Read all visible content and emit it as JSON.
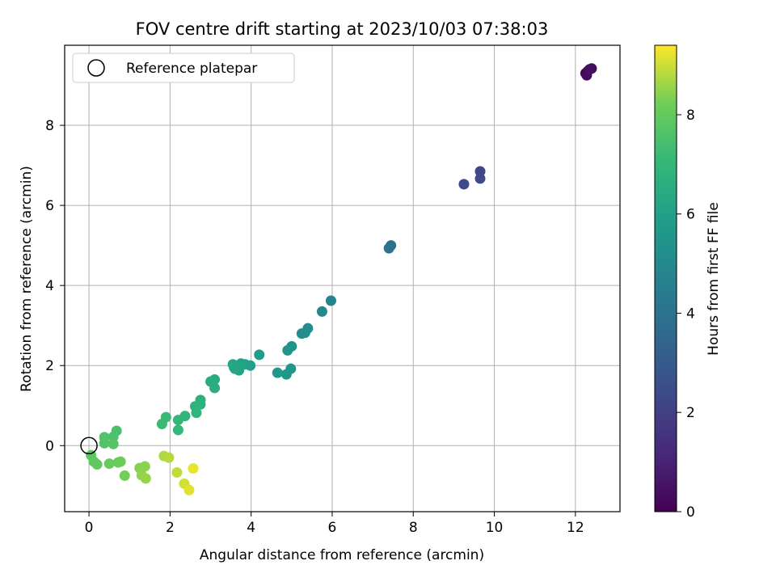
{
  "chart_data": {
    "type": "scatter",
    "title": "FOV centre drift starting at 2023/10/03 07:38:03",
    "xlabel": "Angular distance from reference (arcmin)",
    "ylabel": "Rotation from reference (arcmin)",
    "colorbar_label": "Hours from first FF file",
    "xlim": [
      -0.6,
      13.1
    ],
    "ylim": [
      -1.65,
      10.0
    ],
    "x_ticks": [
      0,
      2,
      4,
      6,
      8,
      10,
      12
    ],
    "y_ticks": [
      0,
      2,
      4,
      6,
      8
    ],
    "colorbar_range": [
      0,
      9.4
    ],
    "colorbar_ticks": [
      0,
      2,
      4,
      6,
      8
    ],
    "colormap": "viridis",
    "grid": true,
    "legend": {
      "location": "top-left",
      "entries": [
        {
          "label": "Reference platepar",
          "marker": "open-circle",
          "color": "#000000"
        }
      ]
    },
    "reference_point": {
      "x": 0,
      "y": 0
    },
    "points": [
      {
        "x": 12.25,
        "y": 9.3,
        "c": 0.05
      },
      {
        "x": 12.3,
        "y": 9.35,
        "c": 0.15
      },
      {
        "x": 12.4,
        "y": 9.42,
        "c": 0.25
      },
      {
        "x": 12.28,
        "y": 9.25,
        "c": 0.35
      },
      {
        "x": 12.35,
        "y": 9.4,
        "c": 0.45
      },
      {
        "x": 9.65,
        "y": 6.85,
        "c": 2.2
      },
      {
        "x": 9.65,
        "y": 6.67,
        "c": 2.35
      },
      {
        "x": 9.25,
        "y": 6.53,
        "c": 2.5
      },
      {
        "x": 7.45,
        "y": 5.0,
        "c": 3.9
      },
      {
        "x": 7.4,
        "y": 4.93,
        "c": 4.0
      },
      {
        "x": 5.97,
        "y": 3.62,
        "c": 4.8
      },
      {
        "x": 5.75,
        "y": 3.35,
        "c": 4.95
      },
      {
        "x": 5.4,
        "y": 2.93,
        "c": 5.1
      },
      {
        "x": 5.25,
        "y": 2.8,
        "c": 5.2
      },
      {
        "x": 5.33,
        "y": 2.82,
        "c": 5.25
      },
      {
        "x": 5.0,
        "y": 2.48,
        "c": 5.4
      },
      {
        "x": 4.9,
        "y": 2.38,
        "c": 5.45
      },
      {
        "x": 4.98,
        "y": 1.92,
        "c": 5.55
      },
      {
        "x": 4.87,
        "y": 1.78,
        "c": 5.6
      },
      {
        "x": 4.65,
        "y": 1.82,
        "c": 5.65
      },
      {
        "x": 4.2,
        "y": 2.27,
        "c": 5.85
      },
      {
        "x": 3.98,
        "y": 2.0,
        "c": 5.95
      },
      {
        "x": 3.85,
        "y": 2.03,
        "c": 6.0
      },
      {
        "x": 3.75,
        "y": 2.05,
        "c": 6.05
      },
      {
        "x": 3.7,
        "y": 1.88,
        "c": 6.1
      },
      {
        "x": 3.6,
        "y": 1.92,
        "c": 6.15
      },
      {
        "x": 3.55,
        "y": 2.03,
        "c": 6.2
      },
      {
        "x": 3.58,
        "y": 1.95,
        "c": 6.25
      },
      {
        "x": 3.1,
        "y": 1.65,
        "c": 6.45
      },
      {
        "x": 3.0,
        "y": 1.6,
        "c": 6.5
      },
      {
        "x": 3.1,
        "y": 1.44,
        "c": 6.55
      },
      {
        "x": 2.75,
        "y": 1.14,
        "c": 6.7
      },
      {
        "x": 2.75,
        "y": 1.03,
        "c": 6.75
      },
      {
        "x": 2.62,
        "y": 0.98,
        "c": 6.8
      },
      {
        "x": 2.65,
        "y": 0.82,
        "c": 6.85
      },
      {
        "x": 2.37,
        "y": 0.74,
        "c": 6.95
      },
      {
        "x": 2.2,
        "y": 0.64,
        "c": 7.0
      },
      {
        "x": 2.2,
        "y": 0.39,
        "c": 7.05
      },
      {
        "x": 1.9,
        "y": 0.71,
        "c": 7.15
      },
      {
        "x": 1.8,
        "y": 0.54,
        "c": 7.2
      },
      {
        "x": 0.68,
        "y": 0.37,
        "c": 7.5
      },
      {
        "x": 0.6,
        "y": 0.22,
        "c": 7.55
      },
      {
        "x": 0.38,
        "y": 0.21,
        "c": 7.6
      },
      {
        "x": 0.38,
        "y": 0.06,
        "c": 7.65
      },
      {
        "x": 0.6,
        "y": 0.04,
        "c": 7.7
      },
      {
        "x": 0.05,
        "y": -0.24,
        "c": 7.85
      },
      {
        "x": 0.12,
        "y": -0.4,
        "c": 7.9
      },
      {
        "x": 0.2,
        "y": -0.47,
        "c": 7.95
      },
      {
        "x": 0.5,
        "y": -0.45,
        "c": 8.05
      },
      {
        "x": 0.72,
        "y": -0.42,
        "c": 8.1
      },
      {
        "x": 0.78,
        "y": -0.4,
        "c": 8.15
      },
      {
        "x": 0.88,
        "y": -0.75,
        "c": 8.25
      },
      {
        "x": 1.25,
        "y": -0.56,
        "c": 8.4
      },
      {
        "x": 1.38,
        "y": -0.52,
        "c": 8.45
      },
      {
        "x": 1.3,
        "y": -0.74,
        "c": 8.5
      },
      {
        "x": 1.4,
        "y": -0.82,
        "c": 8.55
      },
      {
        "x": 1.85,
        "y": -0.26,
        "c": 8.75
      },
      {
        "x": 1.97,
        "y": -0.3,
        "c": 8.8
      },
      {
        "x": 2.17,
        "y": -0.67,
        "c": 8.9
      },
      {
        "x": 2.35,
        "y": -0.95,
        "c": 9.05
      },
      {
        "x": 2.47,
        "y": -1.11,
        "c": 9.15
      },
      {
        "x": 2.57,
        "y": -0.57,
        "c": 9.25
      }
    ]
  }
}
